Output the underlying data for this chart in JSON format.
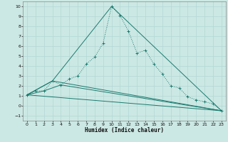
{
  "xlabel": "Humidex (Indice chaleur)",
  "bg_color": "#cce8e4",
  "grid_color": "#b0d8d4",
  "line_color": "#1a7a6e",
  "xlim": [
    -0.5,
    23.5
  ],
  "ylim": [
    -1.5,
    10.5
  ],
  "xticks": [
    0,
    1,
    2,
    3,
    4,
    5,
    6,
    7,
    8,
    9,
    10,
    11,
    12,
    13,
    14,
    15,
    16,
    17,
    18,
    19,
    20,
    21,
    22,
    23
  ],
  "yticks": [
    -1,
    0,
    1,
    2,
    3,
    4,
    5,
    6,
    7,
    8,
    9,
    10
  ],
  "series": [
    [
      0,
      1.1
    ],
    [
      1,
      1.5
    ],
    [
      2,
      1.5
    ],
    [
      3,
      2.5
    ],
    [
      4,
      2.1
    ],
    [
      5,
      2.7
    ],
    [
      6,
      3.0
    ],
    [
      7,
      4.2
    ],
    [
      8,
      4.9
    ],
    [
      9,
      6.3
    ],
    [
      10,
      10.0
    ],
    [
      11,
      9.1
    ],
    [
      12,
      7.5
    ],
    [
      13,
      5.3
    ],
    [
      14,
      5.6
    ],
    [
      15,
      4.2
    ],
    [
      16,
      3.2
    ],
    [
      17,
      2.0
    ],
    [
      18,
      1.8
    ],
    [
      19,
      0.9
    ],
    [
      20,
      0.6
    ],
    [
      21,
      0.4
    ],
    [
      22,
      0.2
    ],
    [
      23,
      -0.5
    ]
  ],
  "line2": [
    [
      0,
      1.1
    ],
    [
      3,
      2.5
    ],
    [
      10,
      10.0
    ],
    [
      23,
      -0.5
    ]
  ],
  "line3": [
    [
      0,
      1.1
    ],
    [
      2,
      1.5
    ],
    [
      4,
      2.1
    ],
    [
      23,
      -0.5
    ]
  ],
  "line4": [
    [
      0,
      1.1
    ],
    [
      23,
      -0.5
    ]
  ],
  "line5": [
    [
      0,
      1.1
    ],
    [
      3,
      2.5
    ],
    [
      23,
      -0.5
    ]
  ]
}
